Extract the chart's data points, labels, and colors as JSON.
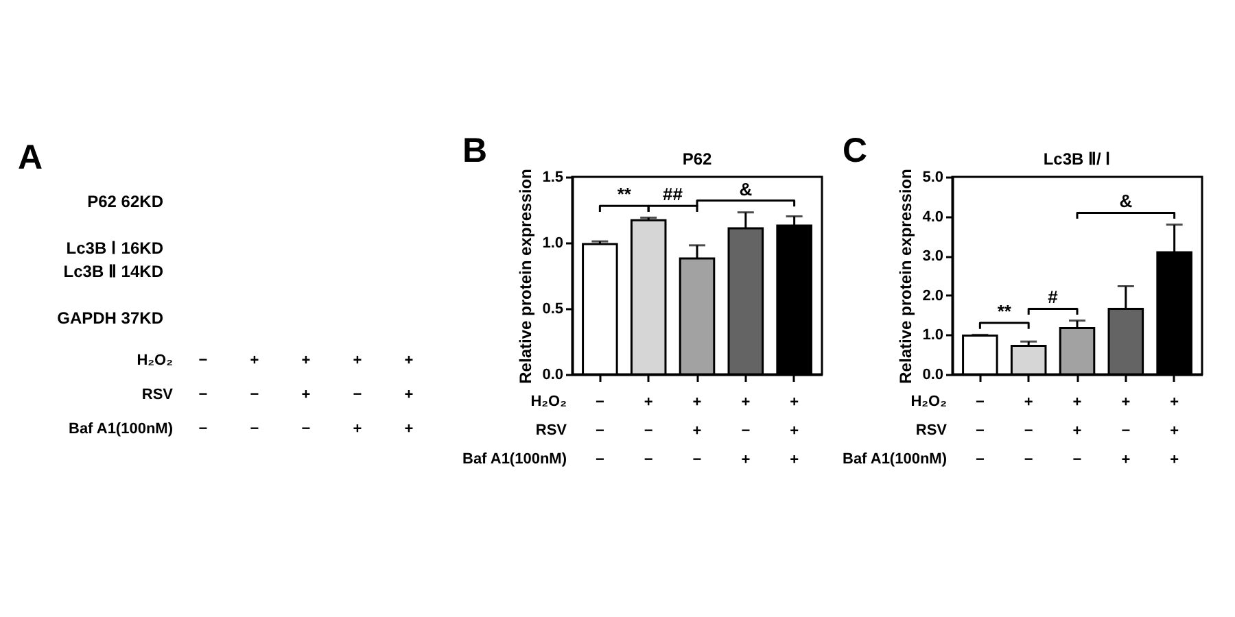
{
  "chart_data": [
    {
      "type": "other",
      "categories": [
        "−\n−\n−",
        "+\n−\n−",
        "+\n+\n−",
        "+\n−\n+",
        "+\n+\n+"
      ],
      "xlabel": "H₂O₂\nRSV\nBaf A1(100nM)",
      "annotations": [
        "A",
        "P62 62KD",
        "Lc3B Ⅰ 16KD",
        "Lc3B Ⅱ 14KD",
        "GAPDH 37KD"
      ]
    },
    {
      "type": "bar",
      "title": "P62",
      "ylabel": "Relative protein expression",
      "xlabel": "H₂O₂\nRSV\nBaf A1(100nM)",
      "categories": [
        "−\n−\n−",
        "+\n−\n−",
        "+\n+\n−",
        "+\n−\n+",
        "+\n+\n+"
      ],
      "values": [
        0.99,
        1.17,
        0.88,
        1.11,
        1.13
      ],
      "colors": [
        "#ffffff",
        "#d6d6d6",
        "#a2a2a2",
        "#646464",
        "#000000"
      ],
      "errors": [
        [
          0.99,
          1.01
        ],
        [
          1.17,
          1.19
        ],
        [
          0.88,
          0.98
        ],
        [
          1.11,
          1.23
        ],
        [
          1.13,
          1.2
        ]
      ],
      "ylim": [
        0,
        1.5
      ],
      "yticks": [
        {
          "value": 0,
          "label": "0.0"
        },
        {
          "value": 0.5,
          "label": "0.5"
        },
        {
          "value": 1,
          "label": "1.0"
        },
        {
          "value": 1.5,
          "label": "1.5"
        }
      ],
      "annotations": [
        "B",
        "**",
        "##",
        "&"
      ]
    },
    {
      "type": "bar",
      "title": "Lc3B Ⅱ/ Ⅰ",
      "ylabel": "Relative protein expression",
      "xlabel": "H₂O₂\nRSV\nBaf A1(100nM)",
      "categories": [
        "−\n−\n−",
        "+\n−\n−",
        "+\n+\n−",
        "+\n−\n+",
        "+\n+\n+"
      ],
      "values": [
        0.98,
        0.72,
        1.17,
        1.66,
        3.09
      ],
      "colors": [
        "#ffffff",
        "#d6d6d6",
        "#a2a2a2",
        "#646464",
        "#000000"
      ],
      "errors": [
        [
          0.98,
          1.0
        ],
        [
          0.72,
          0.83
        ],
        [
          1.17,
          1.36
        ],
        [
          1.66,
          2.23
        ],
        [
          3.09,
          3.79
        ]
      ],
      "ylim": [
        0,
        5
      ],
      "yticks": [
        {
          "value": 0,
          "label": "0.0"
        },
        {
          "value": 1,
          "label": "1.0"
        },
        {
          "value": 2,
          "label": "2.0"
        },
        {
          "value": 3,
          "label": "3.0"
        },
        {
          "value": 4,
          "label": "4.0"
        },
        {
          "value": 5,
          "label": "5.0"
        }
      ],
      "annotations": [
        "C",
        "**",
        "#",
        "&"
      ]
    }
  ]
}
